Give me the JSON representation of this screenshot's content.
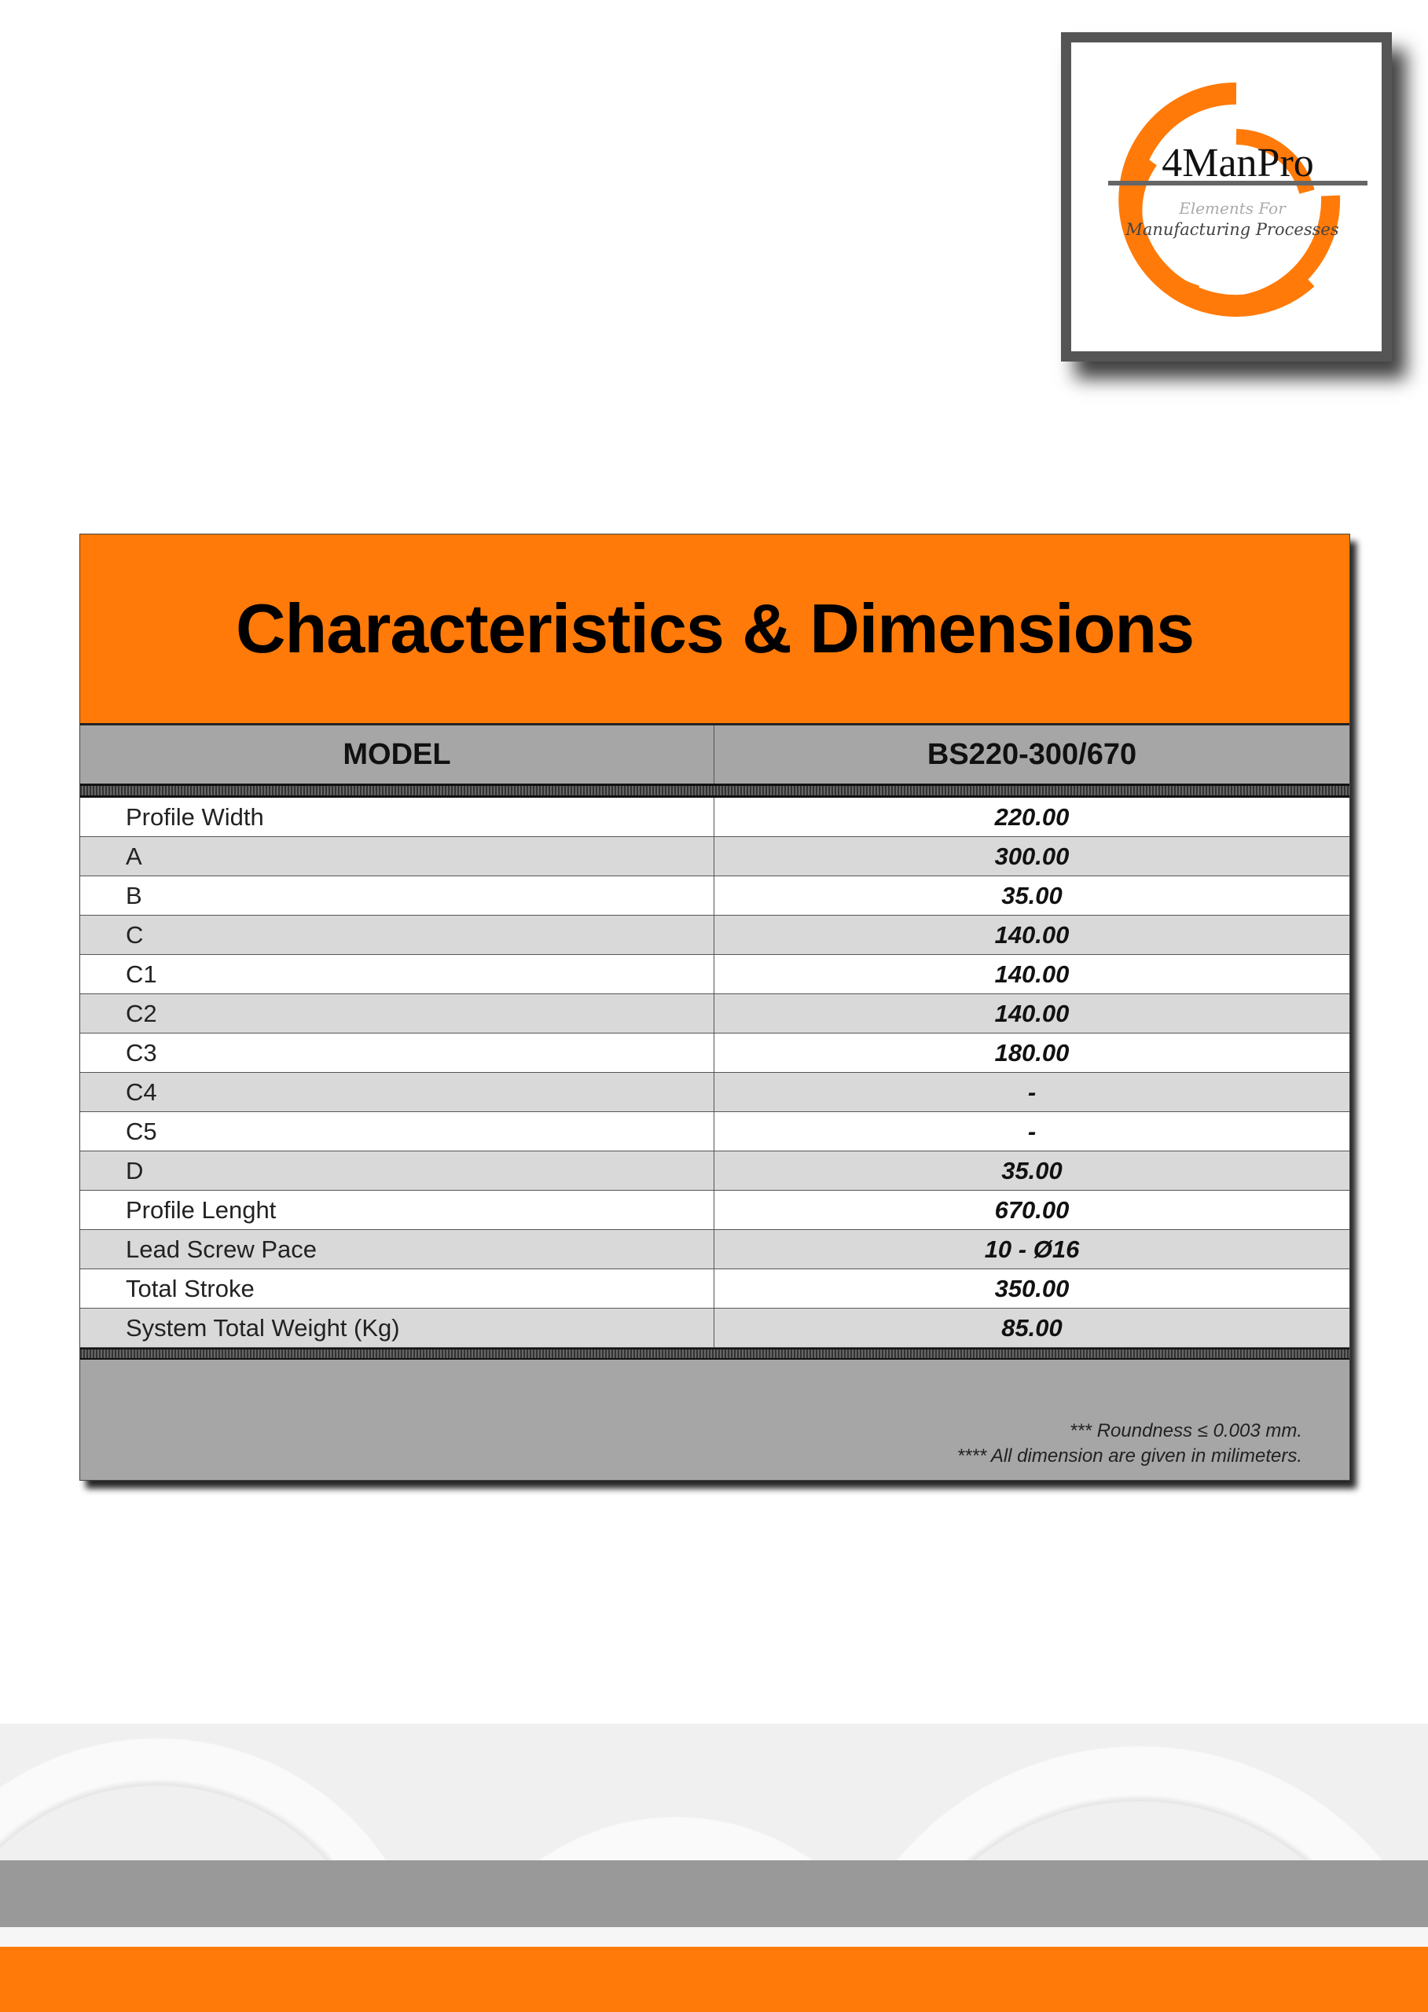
{
  "logo": {
    "name": "4ManPro",
    "tagline_1": "Elements For",
    "tagline_2": "Manufacturing Processes"
  },
  "colors": {
    "accent": "#ff7a08",
    "header_gray": "#a6a6a6",
    "row_alt": "#d9d9d9"
  },
  "table": {
    "title": "Characteristics & Dimensions",
    "header": {
      "label": "MODEL",
      "model": "BS220-300/670"
    },
    "rows": [
      {
        "label": "Profile Width",
        "value": "220.00"
      },
      {
        "label": "A",
        "value": "300.00"
      },
      {
        "label": "B",
        "value": "35.00"
      },
      {
        "label": "C",
        "value": "140.00"
      },
      {
        "label": "C1",
        "value": "140.00"
      },
      {
        "label": "C2",
        "value": "140.00"
      },
      {
        "label": "C3",
        "value": "180.00"
      },
      {
        "label": "C4",
        "value": "-"
      },
      {
        "label": "C5",
        "value": "-"
      },
      {
        "label": "D",
        "value": "35.00"
      },
      {
        "label": "Profile Lenght",
        "value": "670.00"
      },
      {
        "label": "Lead Screw Pace",
        "value": "10 - Ø16"
      },
      {
        "label": "Total Stroke",
        "value": "350.00"
      },
      {
        "label": "System Total Weight (Kg)",
        "value": "85.00"
      }
    ],
    "notes": [
      "*** Roundness ≤ 0.003 mm.",
      "**** All dimension are given in milimeters."
    ]
  }
}
